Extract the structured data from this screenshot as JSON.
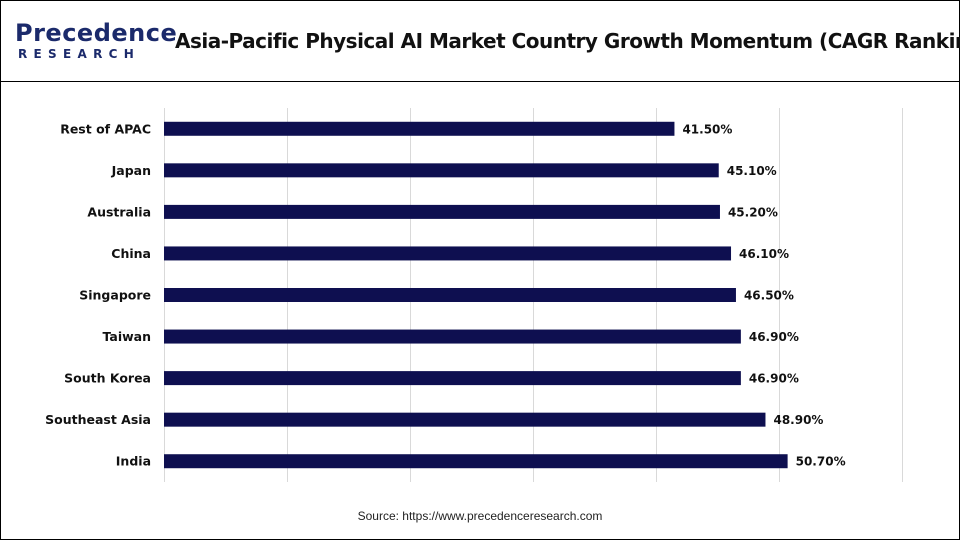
{
  "header": {
    "logo_text_top": "Precedence",
    "logo_text_bottom": "RESEARCH",
    "title": "Asia-Pacific Physical AI Market Country Growth Momentum (CAGR Ranking)"
  },
  "footer": {
    "source": "Source: https://www.precedenceresearch.com"
  },
  "colors": {
    "bar": "#0e0f50",
    "grid": "#d9d9d9",
    "brand": "#1b2a6b"
  },
  "chart_data": {
    "type": "bar",
    "orientation": "horizontal",
    "categories": [
      "Rest of APAC",
      "Japan",
      "Australia",
      "China",
      "Singapore",
      "Taiwan",
      "South Korea",
      "Southeast Asia",
      "India"
    ],
    "values": [
      41.5,
      45.1,
      45.2,
      46.1,
      46.5,
      46.9,
      46.9,
      48.9,
      50.7
    ],
    "data_labels": [
      "41.50%",
      "45.10%",
      "45.20%",
      "46.10%",
      "46.50%",
      "46.90%",
      "46.90%",
      "48.90%",
      "50.70%"
    ],
    "unit": "%",
    "xlim": [
      0,
      60
    ],
    "grid": true,
    "legend": "none"
  }
}
